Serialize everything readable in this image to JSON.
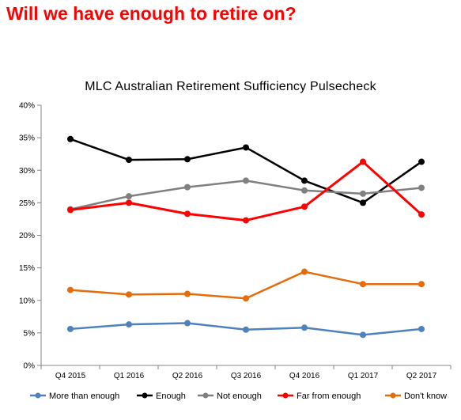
{
  "headline": "Will we have enough to retire on?",
  "chart_data": {
    "type": "line",
    "title": "MLC Australian Retirement Sufficiency Pulsecheck",
    "xlabel": "",
    "ylabel": "",
    "categories": [
      "Q4 2015",
      "Q1 2016",
      "Q2 2016",
      "Q3 2016",
      "Q4 2016",
      "Q1 2017",
      "Q2 2017"
    ],
    "ylim": [
      0,
      40
    ],
    "yticks": [
      0,
      5,
      10,
      15,
      20,
      25,
      30,
      35,
      40
    ],
    "ytick_labels": [
      "0%",
      "5%",
      "10%",
      "15%",
      "20%",
      "25%",
      "30%",
      "35%",
      "40%"
    ],
    "grid": false,
    "legend_position": "bottom",
    "series": [
      {
        "name": "More than enough",
        "color": "#4f81bd",
        "values": [
          5.6,
          6.3,
          6.5,
          5.5,
          5.8,
          4.7,
          5.6
        ]
      },
      {
        "name": "Enough",
        "color": "#000000",
        "values": [
          34.8,
          31.6,
          31.7,
          33.5,
          28.4,
          25.0,
          31.3
        ]
      },
      {
        "name": "Not enough",
        "color": "#808080",
        "values": [
          24.0,
          26.0,
          27.4,
          28.4,
          26.9,
          26.4,
          27.3
        ]
      },
      {
        "name": "Far from enough",
        "color": "#ff0000",
        "values": [
          23.9,
          25.0,
          23.3,
          22.3,
          24.4,
          31.3,
          23.2
        ]
      },
      {
        "name": "Don't know",
        "color": "#e46c0a",
        "values": [
          11.6,
          10.9,
          11.0,
          10.3,
          14.4,
          12.5,
          12.5
        ]
      }
    ]
  }
}
